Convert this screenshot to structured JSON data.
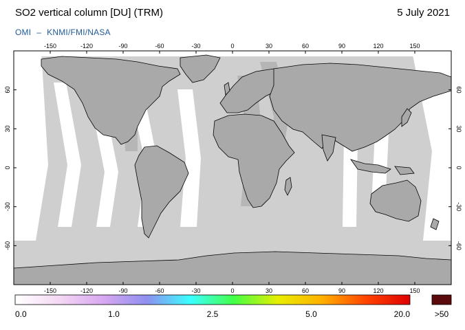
{
  "header": {
    "title": "SO2 vertical column [DU] (TRM)",
    "date": "5 July 2021",
    "credit_left": "OMI",
    "credit_sep": "–",
    "credit_right": "KNMI/FMI/NASA"
  },
  "map": {
    "projection": "equirectangular",
    "lon_ticks": [
      "-150",
      "-120",
      "-90",
      "-60",
      "-30",
      "0",
      "30",
      "60",
      "90",
      "120",
      "150"
    ],
    "lat_ticks": [
      "60",
      "30",
      "0",
      "-30",
      "-60"
    ],
    "colors": {
      "ocean": "#cfcfcf",
      "land_swath": "#bdbdbd",
      "land_outside": "#a9a9a9",
      "gap": "#ffffff",
      "coast": "#000000"
    }
  },
  "colorbar": {
    "labels": [
      "0.0",
      "1.0",
      "2.5",
      "5.0",
      "20.0"
    ],
    "overflow_label": ">50",
    "overflow_color": "#5a0a0a",
    "gradient": [
      "#ffffff",
      "#f4d8f4",
      "#d8a8f0",
      "#8f8ff0",
      "#39ffff",
      "#44ff44",
      "#e8ee00",
      "#ffb000",
      "#ff4400",
      "#e00000"
    ]
  }
}
